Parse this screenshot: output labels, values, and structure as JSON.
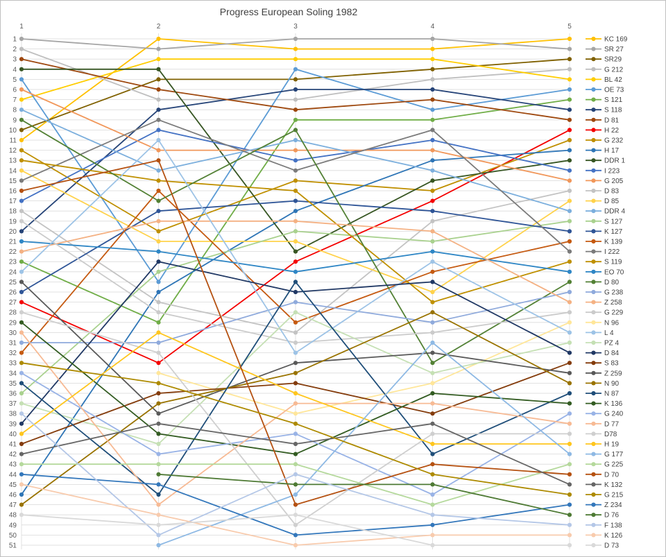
{
  "title": "Progress European Soling 1982",
  "chart_data": {
    "type": "line",
    "x_ticks": [
      "1",
      "2",
      "3",
      "4",
      "5"
    ],
    "y_axis": {
      "min": 1,
      "max": 51,
      "step": 1,
      "direction": "rank-descending"
    },
    "grid": "horizontal-and-vertical",
    "legend_position": "right",
    "note": "Bump chart of race ranks; value n = position at race n; final column order matches legend order",
    "series": [
      {
        "name": "KC 169",
        "color": "#FFC000",
        "values": [
          11,
          1,
          2,
          2,
          1
        ]
      },
      {
        "name": "SR 27",
        "color": "#A5A5A5",
        "values": [
          1,
          2,
          1,
          1,
          2
        ]
      },
      {
        "name": "SR29",
        "color": "#7F6000",
        "values": [
          10,
          5,
          5,
          4,
          3
        ]
      },
      {
        "name": "G 212",
        "color": "#BFBFBF",
        "values": [
          2,
          7,
          7,
          5,
          4
        ]
      },
      {
        "name": "BL 42",
        "color": "#FFCD00",
        "values": [
          7,
          3,
          3,
          3,
          5
        ]
      },
      {
        "name": "OE 73",
        "color": "#5B9BD5",
        "values": [
          5,
          25,
          4,
          8,
          6
        ]
      },
      {
        "name": "S 121",
        "color": "#70AD47",
        "values": [
          23,
          29,
          9,
          9,
          7
        ]
      },
      {
        "name": "S 118",
        "color": "#264478",
        "values": [
          20,
          8,
          6,
          6,
          8
        ]
      },
      {
        "name": "D 81",
        "color": "#9E480E",
        "values": [
          3,
          6,
          8,
          7,
          9
        ]
      },
      {
        "name": "H 22",
        "color": "#F40000",
        "values": [
          27,
          33,
          23,
          17,
          10
        ]
      },
      {
        "name": "G 232",
        "color": "#BF8F00",
        "values": [
          12,
          20,
          15,
          16,
          11
        ]
      },
      {
        "name": "H 17",
        "color": "#2E75B6",
        "values": [
          46,
          26,
          18,
          13,
          12
        ]
      },
      {
        "name": "DDR 1",
        "color": "#375623",
        "values": [
          4,
          4,
          22,
          15,
          13
        ]
      },
      {
        "name": "I 223",
        "color": "#4472C4",
        "values": [
          17,
          10,
          13,
          11,
          14
        ]
      },
      {
        "name": "G 205",
        "color": "#F1975A",
        "values": [
          6,
          12,
          12,
          12,
          15
        ]
      },
      {
        "name": "D 83",
        "color": "#C3C3C3",
        "values": [
          18,
          27,
          30,
          19,
          16
        ]
      },
      {
        "name": "D 85",
        "color": "#FFD24B",
        "values": [
          14,
          21,
          21,
          26,
          17
        ]
      },
      {
        "name": "DDR 4",
        "color": "#7CAFDD",
        "values": [
          8,
          14,
          11,
          14,
          18
        ]
      },
      {
        "name": "S 127",
        "color": "#A9D18E",
        "values": [
          36,
          24,
          20,
          21,
          19
        ]
      },
      {
        "name": "K 127",
        "color": "#2F5597",
        "values": [
          26,
          18,
          17,
          18,
          20
        ]
      },
      {
        "name": "K 139",
        "color": "#C55A11",
        "values": [
          32,
          16,
          29,
          24,
          21
        ]
      },
      {
        "name": "I 222",
        "color": "#7B7B7B",
        "values": [
          15,
          9,
          14,
          10,
          22
        ]
      },
      {
        "name": "S 119",
        "color": "#BF9000",
        "values": [
          13,
          15,
          16,
          27,
          23
        ]
      },
      {
        "name": "EO 70",
        "color": "#2E86C5",
        "values": [
          21,
          22,
          24,
          22,
          24
        ]
      },
      {
        "name": "D 80",
        "color": "#538135",
        "values": [
          9,
          17,
          10,
          33,
          25
        ]
      },
      {
        "name": "G 238",
        "color": "#8FAADC",
        "values": [
          31,
          31,
          27,
          29,
          26
        ]
      },
      {
        "name": "Z 258",
        "color": "#F4B183",
        "values": [
          22,
          19,
          19,
          20,
          27
        ]
      },
      {
        "name": "G 229",
        "color": "#CBCBCB",
        "values": [
          19,
          28,
          31,
          30,
          28
        ]
      },
      {
        "name": "N 96",
        "color": "#FFE699",
        "values": [
          null,
          34,
          38,
          35,
          29
        ]
      },
      {
        "name": "L 4",
        "color": "#9DC3E6",
        "values": [
          24,
          11,
          32,
          23,
          30
        ]
      },
      {
        "name": "PZ 4",
        "color": "#C5E0B4",
        "values": [
          37,
          41,
          28,
          34,
          31
        ]
      },
      {
        "name": "D 84",
        "color": "#203864",
        "values": [
          39,
          23,
          26,
          25,
          32
        ]
      },
      {
        "name": "S 83",
        "color": "#843C0C",
        "values": [
          41,
          36,
          35,
          38,
          33
        ]
      },
      {
        "name": "Z 259",
        "color": "#595959",
        "values": [
          25,
          38,
          33,
          32,
          34
        ]
      },
      {
        "name": "N 90",
        "color": "#997300",
        "values": [
          47,
          37,
          34,
          28,
          35
        ]
      },
      {
        "name": "N 87",
        "color": "#1F4E79",
        "values": [
          35,
          46,
          25,
          42,
          36
        ]
      },
      {
        "name": "K 136",
        "color": "#335C22",
        "values": [
          29,
          40,
          42,
          36,
          37
        ]
      },
      {
        "name": "G 240",
        "color": "#99B3E6",
        "values": [
          34,
          42,
          40,
          46,
          38
        ]
      },
      {
        "name": "D 77",
        "color": "#F7BA94",
        "values": [
          30,
          47,
          37,
          37,
          39
        ]
      },
      {
        "name": "D78",
        "color": "#CFCFCF",
        "values": [
          28,
          32,
          49,
          40,
          40
        ]
      },
      {
        "name": "H 19",
        "color": "#FFC61E",
        "values": [
          40,
          30,
          36,
          41,
          41
        ]
      },
      {
        "name": "G 177",
        "color": "#8EB9E4",
        "values": [
          null,
          51,
          46,
          31,
          42
        ]
      },
      {
        "name": "G 225",
        "color": "#B5D99C",
        "values": [
          43,
          43,
          43,
          47,
          43
        ]
      },
      {
        "name": "D 70",
        "color": "#B55111",
        "values": [
          16,
          13,
          47,
          43,
          44
        ]
      },
      {
        "name": "K 132",
        "color": "#666666",
        "values": [
          42,
          39,
          41,
          39,
          45
        ]
      },
      {
        "name": "G 215",
        "color": "#AD8A00",
        "values": [
          33,
          35,
          39,
          44,
          46
        ]
      },
      {
        "name": "Z 234",
        "color": "#3377BB",
        "values": [
          44,
          45,
          50,
          49,
          47
        ]
      },
      {
        "name": "D 76",
        "color": "#4E7A34",
        "values": [
          null,
          44,
          45,
          45,
          48
        ]
      },
      {
        "name": "F 138",
        "color": "#B4C7E7",
        "values": [
          38,
          50,
          44,
          48,
          49
        ]
      },
      {
        "name": "K 126",
        "color": "#F8CBAD",
        "values": [
          45,
          48,
          51,
          50,
          50
        ]
      },
      {
        "name": "D 73",
        "color": "#D9D9D9",
        "values": [
          48,
          49,
          48,
          51,
          51
        ]
      }
    ],
    "layout": {
      "plot_left": 30,
      "plot_right": 820,
      "plot_top": 55,
      "plot_bottom": 785,
      "legend_marker_x1": 843,
      "legend_marker_x2": 866,
      "legend_text_x": 870,
      "grid_color": "#D9D9D9",
      "tick_color": "#595959",
      "legend_text_color": "#404040"
    }
  }
}
